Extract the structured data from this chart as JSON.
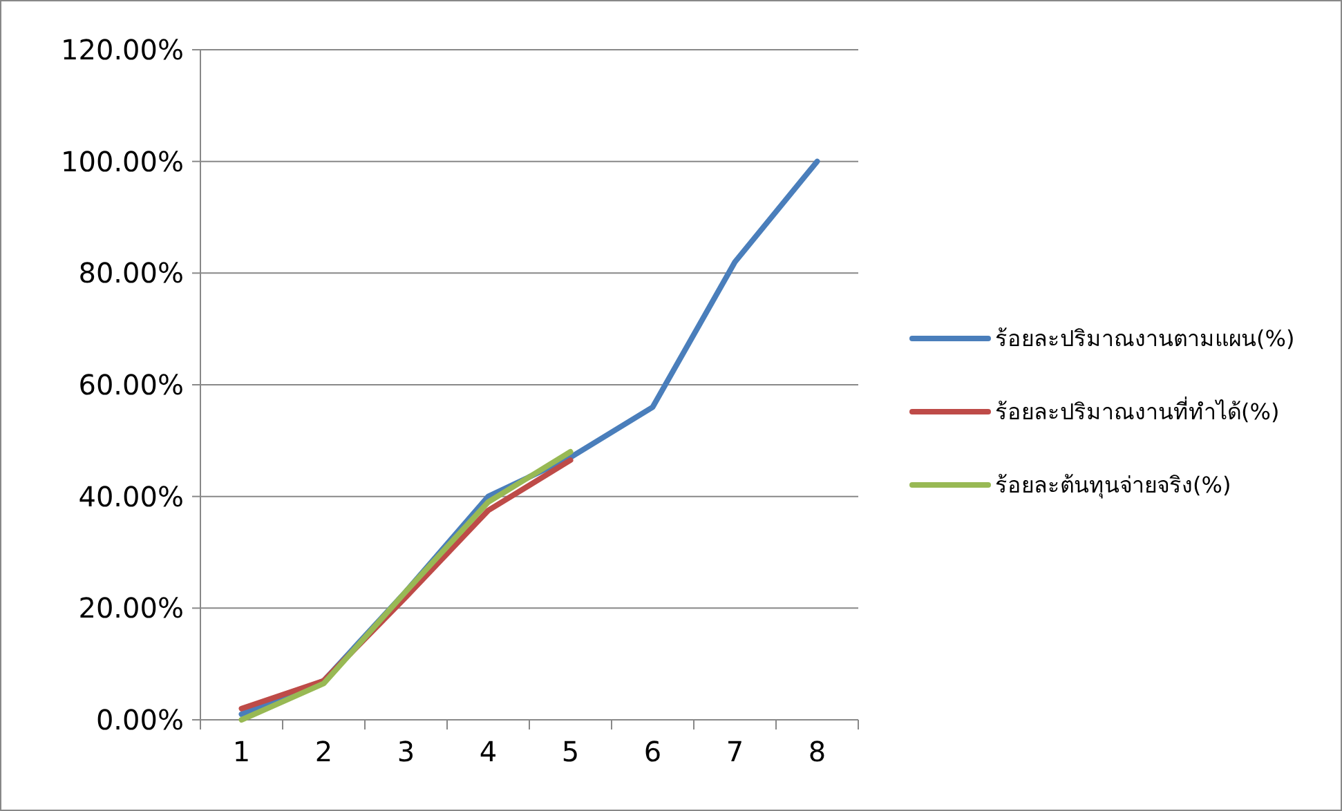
{
  "chart_data": {
    "type": "line",
    "categories": [
      "1",
      "2",
      "3",
      "4",
      "5",
      "6",
      "7",
      "8"
    ],
    "series": [
      {
        "name": "ร้อยละปริมาณงานตามแผน(%)",
        "color": "#4a7ebb",
        "values": [
          1,
          7,
          23,
          40,
          47,
          56,
          82,
          100
        ]
      },
      {
        "name": "ร้อยละปริมาณงานที่ทำได้(%)",
        "color": "#be4b48",
        "values": [
          2,
          7,
          22,
          37.5,
          46.5,
          null,
          null,
          null
        ]
      },
      {
        "name": "ร้อยละต้นทุนจ่ายจริง(%)",
        "color": "#98b954",
        "values": [
          0,
          6.5,
          23,
          39,
          48,
          null,
          null,
          null
        ]
      }
    ],
    "ylim": [
      0,
      120
    ],
    "yticks": [
      {
        "value": 0,
        "label": "0.00%"
      },
      {
        "value": 20,
        "label": "20.00%"
      },
      {
        "value": 40,
        "label": "40.00%"
      },
      {
        "value": 60,
        "label": "60.00%"
      },
      {
        "value": 80,
        "label": "80.00%"
      },
      {
        "value": 100,
        "label": "100.00%"
      },
      {
        "value": 120,
        "label": "120.00%"
      }
    ],
    "grid": "y",
    "legend": "right",
    "marker": "none",
    "line_style": "solid"
  }
}
